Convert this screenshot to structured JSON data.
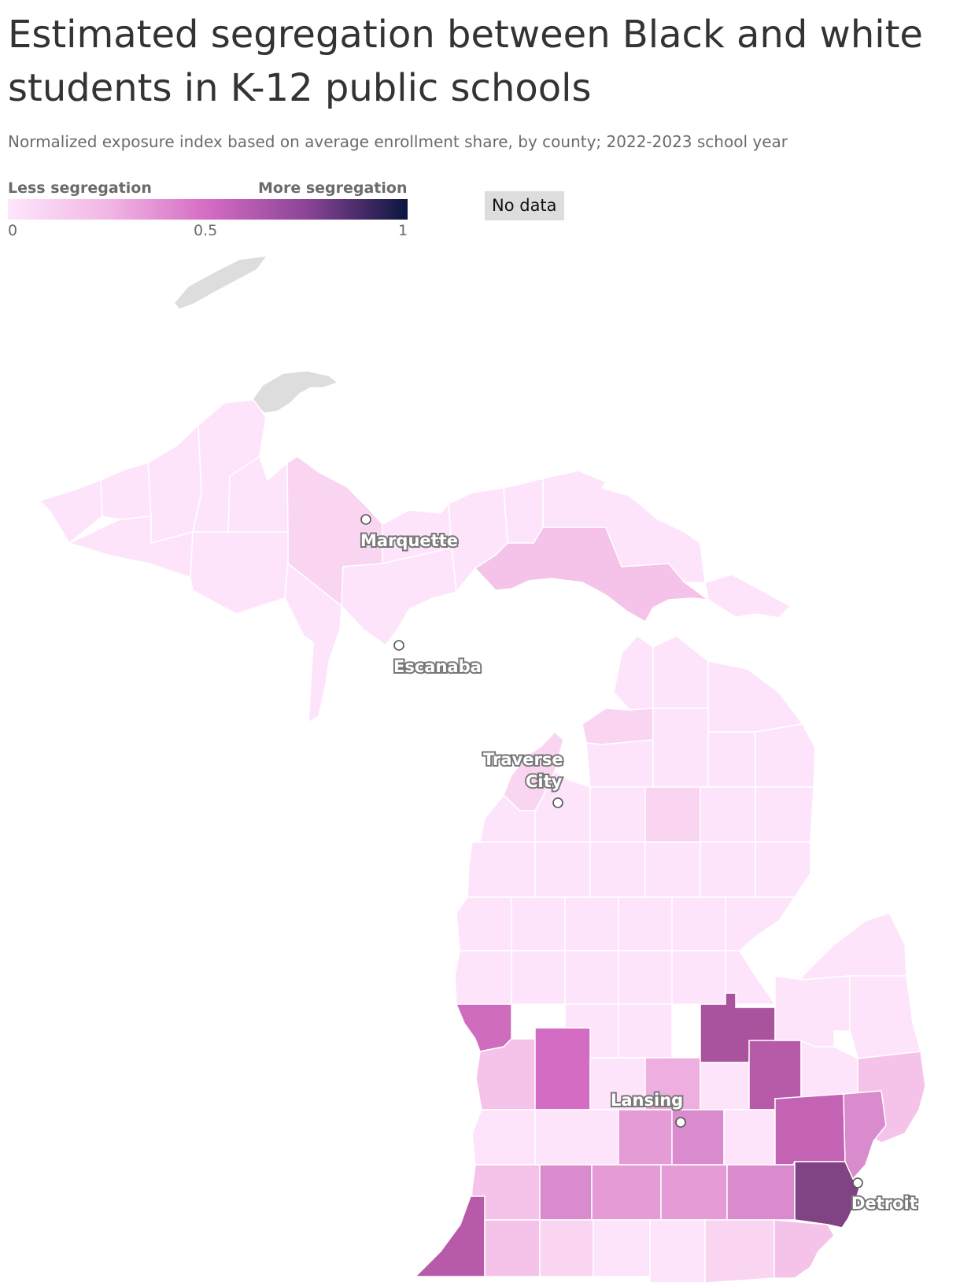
{
  "header": {
    "title": "Estimated segregation between Black and white students in K-12 public schools",
    "subtitle": "Normalized exposure index based on average enrollment share, by county; 2022-2023 school year"
  },
  "legend": {
    "low_label": "Less segregation",
    "high_label": "More segregation",
    "ticks": [
      "0",
      "0.5",
      "1"
    ],
    "no_data_label": "No data",
    "scale_colors": [
      "#fde6fb",
      "#f2b6e4",
      "#d46cc3",
      "#8a4496",
      "#0b163f"
    ],
    "no_data_color": "#dddddd"
  },
  "cities": {
    "marquette": "Marquette",
    "escanaba": "Escanaba",
    "traverse_line1": "Traverse",
    "traverse_line2": "City",
    "lansing": "Lansing",
    "detroit": "Detroit"
  },
  "colors": {
    "c0": "#fde4fb",
    "c1": "#f9d5f2",
    "c2": "#f5c3e9",
    "c3": "#eeaee0",
    "c4": "#e59bd6",
    "c5": "#d98bcd",
    "c6": "#cf6cbd",
    "c7": "#c463b4",
    "c8": "#b65aa9",
    "c9": "#a9539f",
    "c10": "#804484",
    "nodata": "#dddddd"
  }
}
